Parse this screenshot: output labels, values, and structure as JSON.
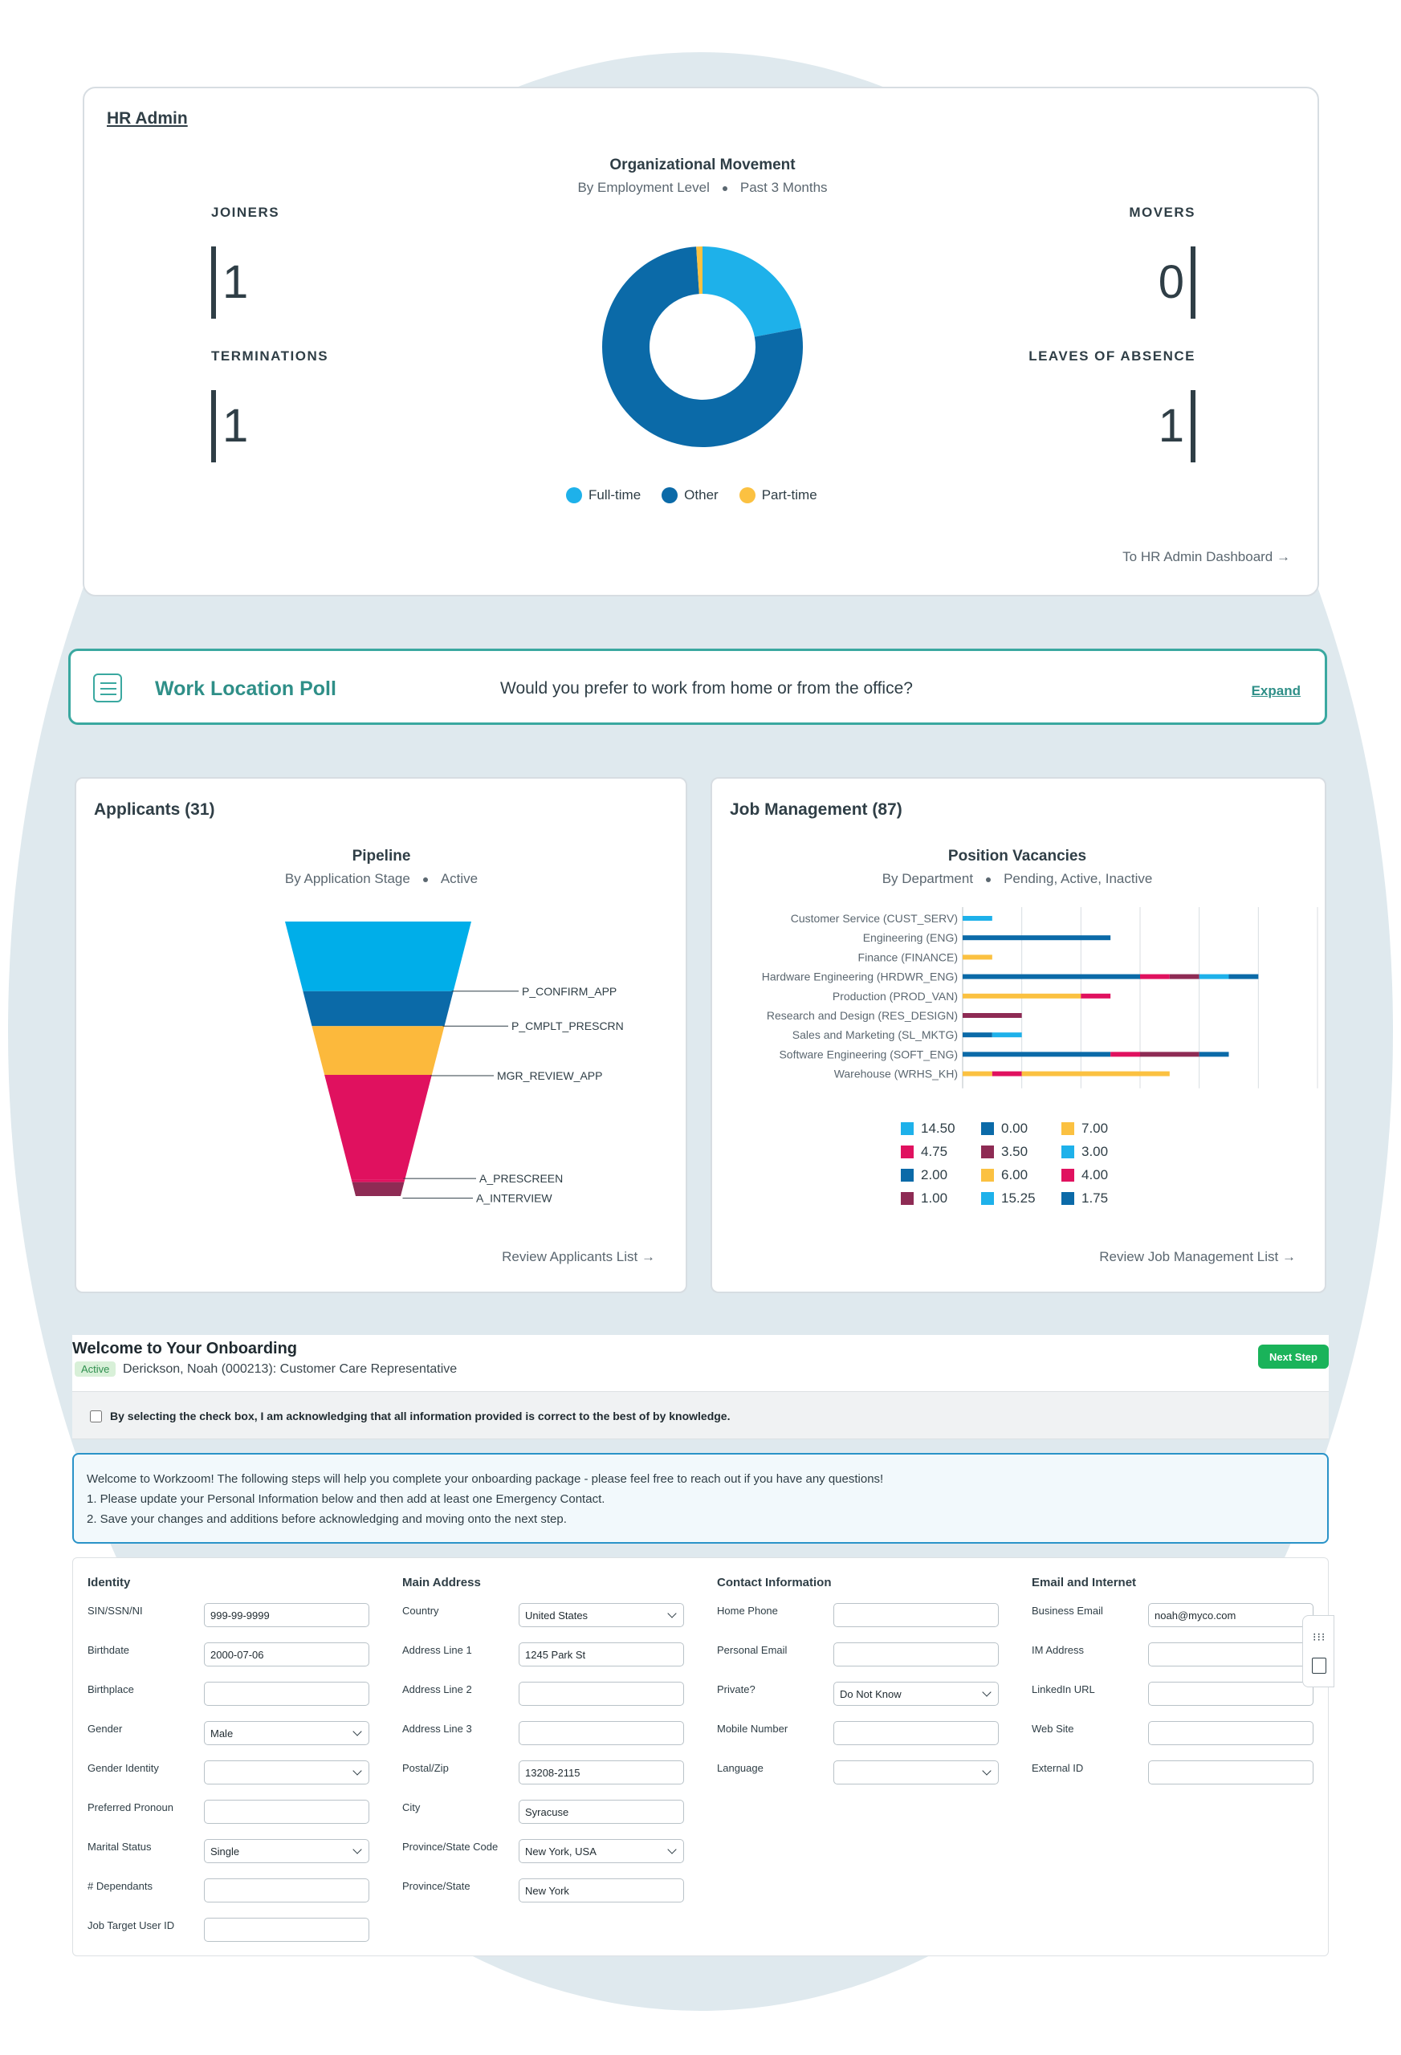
{
  "hr_admin": {
    "title": "HR Admin",
    "chart_title": "Organizational Movement",
    "chart_sub_a": "By Employment Level",
    "chart_sub_b": "Past 3 Months",
    "joiners_label": "JOINERS",
    "joiners_value": "1",
    "terminations_label": "TERMINATIONS",
    "terminations_value": "1",
    "movers_label": "MOVERS",
    "movers_value": "0",
    "leaves_label": "LEAVES OF ABSENCE",
    "leaves_value": "1",
    "dashboard_link": "To HR Admin Dashboard →",
    "colors": {
      "full_time": "#1eb1ea",
      "other": "#0b6aa8",
      "part_time": "#fbc141"
    }
  },
  "chart_data": [
    {
      "type": "pie",
      "title": "Organizational Movement",
      "subtitle": "By Employment Level • Past 3 Months",
      "categories": [
        "Full-time",
        "Other",
        "Part-time"
      ],
      "values": [
        22,
        77,
        1
      ],
      "legend": "bottom"
    },
    {
      "type": "bar",
      "variant": "funnel",
      "title": "Pipeline",
      "subtitle": "By Application Stage • Active",
      "categories": [
        "",
        "P_CONFIRM_APP",
        "P_CMPLT_PRESCRN",
        "MGR_REVIEW_APP",
        "A_PRESCREEN",
        "A_INTERVIEW"
      ],
      "values": [
        10,
        5,
        7,
        15,
        0.4,
        2
      ],
      "colors": [
        "#00aee9",
        "#0b6aa8",
        "#fcb93c",
        "#e0115f",
        "#e0115f",
        "#8e2b54"
      ]
    },
    {
      "type": "bar",
      "orientation": "horizontal",
      "stacked": true,
      "title": "Position Vacancies",
      "subtitle": "By Department • Pending, Active, Inactive",
      "categories": [
        "Customer Service (CUST_SERV)",
        "Engineering (ENG)",
        "Finance (FINANCE)",
        "Hardware Engineering (HRDWR_ENG)",
        "Production (PROD_VAN)",
        "Research and Design (RES_DESIGN)",
        "Sales and Marketing (SL_MKTG)",
        "Software Engineering (SOFT_ENG)",
        "Warehouse (WRHS_KH)"
      ],
      "xlim": [
        0,
        12
      ],
      "xticks": [
        0,
        2,
        4,
        6,
        8,
        10,
        12
      ],
      "grid": true,
      "series": [
        {
          "name": "14.50",
          "color": "#1eb1ea",
          "values": [
            1,
            0,
            0,
            0,
            0,
            0,
            0,
            0,
            0
          ]
        },
        {
          "name": "0.00",
          "color": "#0b6aa8",
          "values": [
            0,
            5,
            0,
            0,
            0,
            0,
            0,
            0,
            0
          ]
        },
        {
          "name": "7.00",
          "color": "#fbc141",
          "values": [
            0,
            0,
            1,
            0,
            0,
            0,
            0,
            0,
            0
          ]
        },
        {
          "name": "4.75",
          "color": "#e0115f",
          "values": [
            0,
            0,
            0,
            0,
            0,
            0,
            0,
            0,
            0
          ]
        },
        {
          "name": "3.50",
          "color": "#8e2b54",
          "values": [
            0,
            0,
            0,
            0,
            0,
            0,
            0,
            0,
            0
          ]
        },
        {
          "name": "3.00",
          "color": "#1eb1ea",
          "values": [
            0,
            0,
            0,
            0,
            0,
            0,
            0,
            0,
            0
          ]
        },
        {
          "name": "2.00",
          "color": "#0b6aa8",
          "values": [
            0,
            0,
            0,
            6,
            0,
            0,
            1,
            5,
            0
          ]
        },
        {
          "name": "6.00",
          "color": "#fbc141",
          "values": [
            0,
            0,
            0,
            0,
            4,
            0,
            0,
            0,
            1
          ]
        },
        {
          "name": "4.00",
          "color": "#e0115f",
          "values": [
            0,
            0,
            0,
            1,
            1,
            0,
            0,
            1,
            1
          ]
        },
        {
          "name": "1.00",
          "color": "#8e2b54",
          "values": [
            0,
            0,
            0,
            1,
            0,
            2,
            0,
            2,
            0
          ]
        },
        {
          "name": "15.25",
          "color": "#1eb1ea",
          "values": [
            0,
            0,
            0,
            1,
            0,
            0,
            1,
            0,
            0
          ]
        },
        {
          "name": "1.75",
          "color": "#0b6aa8",
          "values": [
            0,
            0,
            0,
            1,
            0,
            0,
            0,
            1,
            0
          ]
        },
        {
          "name": "",
          "color": "#fbc141",
          "values": [
            0,
            0,
            0,
            0,
            0,
            0,
            0,
            0,
            5
          ]
        }
      ],
      "legend": "bottom"
    }
  ],
  "poll": {
    "title": "Work Location Poll",
    "question": "Would you prefer to work from home or from the office?",
    "expand": "Expand"
  },
  "applicants": {
    "title": "Applicants (31)",
    "chart_title": "Pipeline",
    "chart_sub_a": "By Application Stage",
    "chart_sub_b": "Active",
    "link": "Review Applicants List →"
  },
  "job_mgmt": {
    "title": "Job Management (87)",
    "chart_title": "Position Vacancies",
    "chart_sub_a": "By Department",
    "chart_sub_b": "Pending, Active, Inactive",
    "link": "Review Job Management List →"
  },
  "onboarding": {
    "title": "Welcome to Your Onboarding",
    "status": "Active",
    "employee": "Derickson, Noah (000213): Customer Care Representative",
    "next_button": "Next Step",
    "ack_text": "By selecting the check box, I am acknowledging that all information provided is correct to the best of by knowledge.",
    "welcome_lines": [
      "Welcome to Workzoom! The following steps will help you complete your onboarding package - please feel free to reach out if you have any questions!",
      "1. Please update your Personal Information below and then add at least one Emergency Contact.",
      "2. Save your changes and additions before acknowledging and moving onto the next step."
    ]
  },
  "form": {
    "columns": [
      {
        "title": "Identity",
        "fields": [
          {
            "label": "SIN/SSN/NI",
            "value": "999-99-9999",
            "type": "text"
          },
          {
            "label": "Birthdate",
            "value": "2000-07-06",
            "type": "text"
          },
          {
            "label": "Birthplace",
            "value": "",
            "type": "text"
          },
          {
            "label": "Gender",
            "value": "Male",
            "type": "select"
          },
          {
            "label": "Gender Identity",
            "value": "",
            "type": "select"
          },
          {
            "label": "Preferred Pronoun",
            "value": "",
            "type": "text"
          },
          {
            "label": "Marital Status",
            "value": "Single",
            "type": "select"
          },
          {
            "label": "# Dependants",
            "value": "",
            "type": "text"
          },
          {
            "label": "Job Target User ID",
            "value": "",
            "type": "text"
          }
        ]
      },
      {
        "title": "Main Address",
        "fields": [
          {
            "label": "Country",
            "value": "United States",
            "type": "select"
          },
          {
            "label": "Address Line 1",
            "value": "1245 Park St",
            "type": "text"
          },
          {
            "label": "Address Line 2",
            "value": "",
            "type": "text"
          },
          {
            "label": "Address Line 3",
            "value": "",
            "type": "text"
          },
          {
            "label": "Postal/Zip",
            "value": "13208-2115",
            "type": "text"
          },
          {
            "label": "City",
            "value": "Syracuse",
            "type": "text"
          },
          {
            "label": "Province/State Code",
            "value": "New York, USA",
            "type": "select"
          },
          {
            "label": "Province/State",
            "value": "New York",
            "type": "text"
          }
        ]
      },
      {
        "title": "Contact Information",
        "fields": [
          {
            "label": "Home Phone",
            "value": "",
            "type": "text"
          },
          {
            "label": "Personal Email",
            "value": "",
            "type": "text"
          },
          {
            "label": "Private?",
            "value": "Do Not Know",
            "type": "select"
          },
          {
            "label": "Mobile Number",
            "value": "",
            "type": "text"
          },
          {
            "label": "Language",
            "value": "",
            "type": "select"
          }
        ]
      },
      {
        "title": "Email and Internet",
        "fields": [
          {
            "label": "Business Email",
            "value": "noah@myco.com",
            "type": "text"
          },
          {
            "label": "IM Address",
            "value": "",
            "type": "text"
          },
          {
            "label": "LinkedIn URL",
            "value": "",
            "type": "text"
          },
          {
            "label": "Web Site",
            "value": "",
            "type": "text"
          },
          {
            "label": "External ID",
            "value": "",
            "type": "text"
          }
        ]
      }
    ]
  }
}
